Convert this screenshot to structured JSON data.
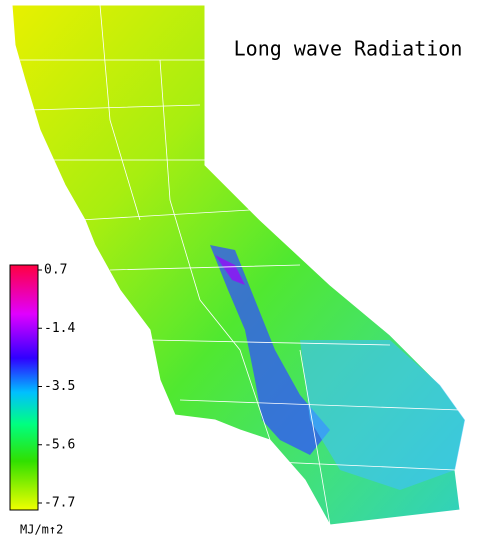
{
  "title": "Long wave Radiation",
  "colorbar": {
    "clim": [
      -7.7,
      0.7
    ],
    "ticks": [
      0.7,
      -1.4,
      -3.5,
      -5.6,
      -7.7
    ],
    "unit": "MJ/m↑2"
  }
}
